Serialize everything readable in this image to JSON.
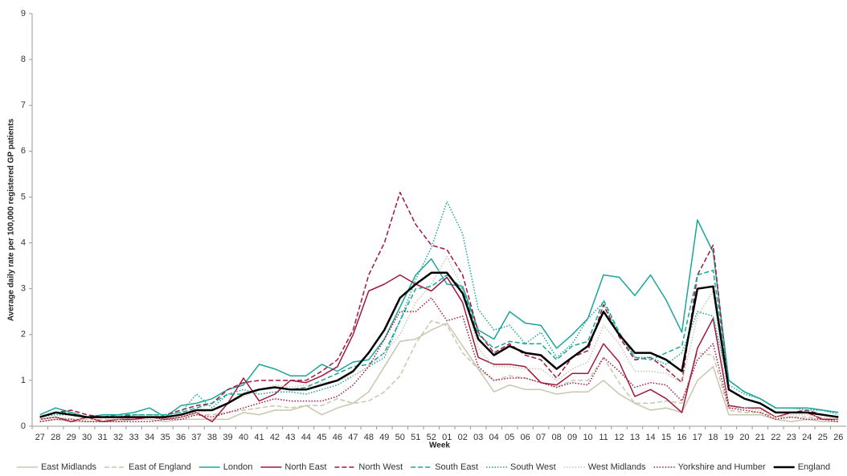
{
  "chart_data": {
    "type": "line",
    "y_label": "Average daily rate per 100,000 registered GP patients",
    "x_label": "Week",
    "categories": [
      "27",
      "28",
      "29",
      "30",
      "31",
      "32",
      "33",
      "34",
      "35",
      "36",
      "37",
      "38",
      "39",
      "40",
      "41",
      "42",
      "43",
      "44",
      "45",
      "46",
      "47",
      "48",
      "49",
      "50",
      "51",
      "52",
      "01",
      "02",
      "03",
      "04",
      "05",
      "06",
      "07",
      "08",
      "09",
      "10",
      "11",
      "12",
      "13",
      "14",
      "15",
      "16",
      "17",
      "18",
      "19",
      "20",
      "21",
      "22",
      "23",
      "24",
      "25",
      "26"
    ],
    "ylim": [
      0,
      9
    ],
    "yticks": [
      0,
      1,
      2,
      3,
      4,
      5,
      6,
      7,
      8,
      9
    ],
    "grid": false,
    "legend": "bottom",
    "series": [
      {
        "name": "East Midlands",
        "color": "#c9c6ae",
        "style": "solid",
        "line_width": 1.5,
        "values": [
          0.1,
          0.15,
          0.1,
          0.1,
          0.1,
          0.1,
          0.15,
          0.15,
          0.1,
          0.15,
          0.15,
          0.15,
          0.15,
          0.3,
          0.25,
          0.35,
          0.35,
          0.45,
          0.25,
          0.4,
          0.5,
          0.75,
          1.3,
          1.85,
          1.9,
          2.1,
          2.25,
          1.75,
          1.25,
          0.75,
          0.9,
          0.8,
          0.8,
          0.7,
          0.75,
          0.75,
          1.0,
          0.7,
          0.5,
          0.35,
          0.4,
          0.3,
          1.0,
          1.3,
          0.25,
          0.25,
          0.25,
          0.15,
          0.1,
          0.15,
          0.1,
          0.1
        ]
      },
      {
        "name": "East of England",
        "color": "#c9c6ae",
        "style": "dashed",
        "line_width": 1.5,
        "values": [
          0.15,
          0.2,
          0.15,
          0.15,
          0.15,
          0.15,
          0.2,
          0.2,
          0.15,
          0.2,
          0.25,
          0.25,
          0.3,
          0.35,
          0.4,
          0.45,
          0.4,
          0.45,
          0.45,
          0.6,
          0.5,
          0.55,
          0.75,
          1.1,
          1.8,
          2.3,
          2.2,
          1.6,
          1.25,
          1.0,
          1.1,
          1.05,
          0.95,
          0.85,
          1.0,
          1.0,
          1.5,
          0.95,
          0.5,
          0.5,
          0.55,
          0.5,
          1.6,
          1.55,
          0.35,
          0.3,
          0.3,
          0.2,
          0.2,
          0.2,
          0.15,
          0.15
        ]
      },
      {
        "name": "London",
        "color": "#1aa59a",
        "style": "solid",
        "line_width": 1.5,
        "values": [
          0.25,
          0.4,
          0.3,
          0.2,
          0.25,
          0.25,
          0.3,
          0.4,
          0.2,
          0.45,
          0.5,
          0.6,
          0.8,
          0.9,
          1.35,
          1.25,
          1.1,
          1.1,
          1.35,
          1.2,
          1.4,
          1.45,
          1.9,
          2.6,
          3.3,
          3.65,
          3.1,
          3.05,
          2.1,
          1.9,
          2.5,
          2.25,
          2.2,
          1.7,
          2.0,
          2.35,
          3.3,
          3.25,
          2.85,
          3.3,
          2.75,
          2.05,
          4.5,
          3.8,
          1.0,
          0.75,
          0.6,
          0.4,
          0.4,
          0.4,
          0.35,
          0.3
        ]
      },
      {
        "name": "North East",
        "color": "#a0173f",
        "style": "solid",
        "line_width": 1.5,
        "values": [
          0.15,
          0.2,
          0.1,
          0.2,
          0.1,
          0.15,
          0.15,
          0.2,
          0.15,
          0.2,
          0.3,
          0.1,
          0.5,
          1.05,
          0.55,
          0.7,
          1.0,
          0.95,
          1.1,
          1.3,
          2.0,
          2.95,
          3.1,
          3.3,
          3.1,
          2.95,
          3.25,
          2.7,
          1.5,
          1.35,
          1.35,
          1.3,
          0.95,
          0.9,
          1.15,
          1.15,
          1.8,
          1.4,
          0.65,
          0.8,
          0.6,
          0.3,
          1.7,
          2.35,
          0.45,
          0.4,
          0.4,
          0.2,
          0.3,
          0.3,
          0.15,
          0.15
        ]
      },
      {
        "name": "North West",
        "color": "#a0173f",
        "style": "dashed",
        "line_width": 1.5,
        "values": [
          0.2,
          0.3,
          0.35,
          0.25,
          0.2,
          0.2,
          0.25,
          0.25,
          0.25,
          0.35,
          0.45,
          0.5,
          0.8,
          0.95,
          1.0,
          1.0,
          1.0,
          1.0,
          1.2,
          1.45,
          2.1,
          3.3,
          4.0,
          5.1,
          4.4,
          3.95,
          3.85,
          3.3,
          2.05,
          1.6,
          1.8,
          1.55,
          1.45,
          1.05,
          1.5,
          1.65,
          2.65,
          1.95,
          1.45,
          1.5,
          1.25,
          0.95,
          3.3,
          3.95,
          0.8,
          0.6,
          0.5,
          0.3,
          0.3,
          0.35,
          0.25,
          0.2
        ]
      },
      {
        "name": "South East",
        "color": "#1aa59a",
        "style": "dashed",
        "line_width": 1.5,
        "values": [
          0.2,
          0.3,
          0.3,
          0.2,
          0.2,
          0.25,
          0.25,
          0.25,
          0.25,
          0.3,
          0.4,
          0.5,
          0.7,
          0.7,
          0.8,
          0.85,
          0.8,
          0.85,
          1.0,
          1.15,
          1.3,
          1.35,
          1.6,
          2.3,
          3.0,
          3.05,
          3.3,
          3.0,
          2.0,
          1.7,
          1.85,
          1.8,
          1.8,
          1.45,
          1.75,
          1.85,
          2.75,
          2.05,
          1.5,
          1.45,
          1.6,
          1.75,
          3.3,
          3.4,
          1.0,
          0.75,
          0.6,
          0.4,
          0.4,
          0.4,
          0.35,
          0.3
        ]
      },
      {
        "name": "South West",
        "color": "#1aa59a",
        "style": "dotted",
        "line_width": 1.5,
        "values": [
          0.2,
          0.25,
          0.25,
          0.2,
          0.2,
          0.2,
          0.25,
          0.25,
          0.25,
          0.3,
          0.7,
          0.4,
          0.7,
          0.8,
          0.7,
          0.75,
          0.75,
          0.7,
          0.8,
          0.9,
          1.1,
          1.3,
          1.5,
          2.3,
          3.2,
          3.9,
          4.9,
          4.2,
          2.55,
          2.1,
          2.2,
          1.8,
          2.05,
          1.5,
          1.8,
          2.35,
          2.7,
          2.0,
          1.5,
          1.5,
          1.35,
          1.6,
          2.5,
          2.4,
          0.9,
          0.7,
          0.6,
          0.4,
          0.4,
          0.35,
          0.35,
          0.25
        ]
      },
      {
        "name": "West Midlands",
        "color": "#c9c6ae",
        "style": "dotted",
        "line_width": 1.5,
        "values": [
          0.15,
          0.2,
          0.15,
          0.15,
          0.15,
          0.15,
          0.2,
          0.2,
          0.15,
          0.2,
          0.3,
          0.35,
          0.5,
          0.65,
          0.8,
          0.9,
          0.85,
          0.9,
          0.95,
          1.0,
          1.1,
          1.3,
          1.6,
          2.0,
          2.7,
          3.1,
          3.7,
          3.0,
          1.7,
          1.3,
          1.3,
          1.25,
          1.25,
          1.0,
          1.25,
          1.4,
          2.2,
          1.8,
          1.2,
          1.2,
          1.15,
          0.95,
          2.4,
          2.95,
          0.4,
          0.4,
          0.35,
          0.2,
          0.25,
          0.25,
          0.2,
          0.15
        ]
      },
      {
        "name": "Yorkshire and Humber",
        "color": "#a0173f",
        "style": "dotted",
        "line_width": 1.5,
        "values": [
          0.1,
          0.15,
          0.15,
          0.1,
          0.1,
          0.1,
          0.1,
          0.1,
          0.15,
          0.15,
          0.25,
          0.2,
          0.3,
          0.4,
          0.5,
          0.6,
          0.55,
          0.55,
          0.55,
          0.65,
          0.9,
          1.3,
          1.9,
          2.5,
          2.5,
          2.8,
          2.3,
          2.4,
          1.3,
          1.0,
          1.05,
          1.05,
          0.95,
          0.85,
          0.95,
          0.9,
          1.5,
          1.2,
          0.85,
          0.95,
          0.9,
          0.55,
          1.45,
          1.8,
          0.4,
          0.35,
          0.3,
          0.15,
          0.2,
          0.15,
          0.15,
          0.1
        ]
      },
      {
        "name": "England",
        "color": "#000000",
        "style": "solid",
        "line_width": 2.5,
        "values": [
          0.2,
          0.3,
          0.25,
          0.2,
          0.2,
          0.2,
          0.2,
          0.2,
          0.2,
          0.25,
          0.35,
          0.35,
          0.5,
          0.7,
          0.8,
          0.85,
          0.8,
          0.8,
          0.9,
          1.0,
          1.2,
          1.6,
          2.1,
          2.8,
          3.1,
          3.35,
          3.35,
          2.9,
          1.9,
          1.55,
          1.75,
          1.6,
          1.55,
          1.25,
          1.5,
          1.75,
          2.5,
          2.0,
          1.6,
          1.6,
          1.45,
          1.2,
          3.0,
          3.05,
          0.8,
          0.6,
          0.5,
          0.3,
          0.3,
          0.3,
          0.25,
          0.2
        ]
      }
    ]
  }
}
